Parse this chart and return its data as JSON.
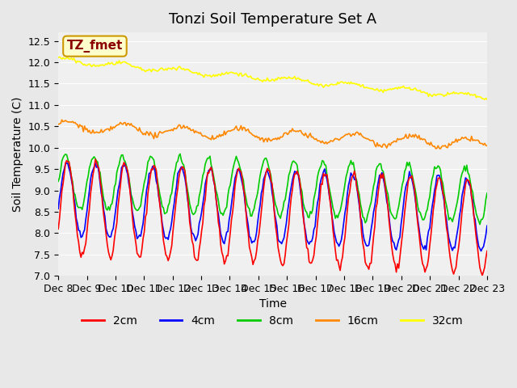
{
  "title": "Tonzi Soil Temperature Set A",
  "xlabel": "Time",
  "ylabel": "Soil Temperature (C)",
  "ylim": [
    7.0,
    12.7
  ],
  "yticks": [
    7.0,
    7.5,
    8.0,
    8.5,
    9.0,
    9.5,
    10.0,
    10.5,
    11.0,
    11.5,
    12.0,
    12.5
  ],
  "xtick_labels": [
    "Dec 8",
    "Dec 9",
    "Dec 10",
    "Dec 11",
    "Dec 12",
    "Dec 13",
    "Dec 14",
    "Dec 15",
    "Dec 16",
    "Dec 17",
    "Dec 18",
    "Dec 19",
    "Dec 20",
    "Dec 21",
    "Dec 22",
    "Dec 23"
  ],
  "n_days": 15,
  "pts_per_day": 24,
  "annotation_text": "TZ_fmet",
  "annotation_bg": "#ffffcc",
  "annotation_border": "#cc9900",
  "annotation_color": "#8b0000",
  "colors": {
    "2cm": "#ff0000",
    "4cm": "#0000ff",
    "8cm": "#00cc00",
    "16cm": "#ff8800",
    "32cm": "#ffff00"
  },
  "background_color": "#e8e8e8",
  "plot_bg": "#f0f0f0",
  "title_fontsize": 13,
  "axis_fontsize": 10,
  "tick_fontsize": 9,
  "legend_fontsize": 10
}
